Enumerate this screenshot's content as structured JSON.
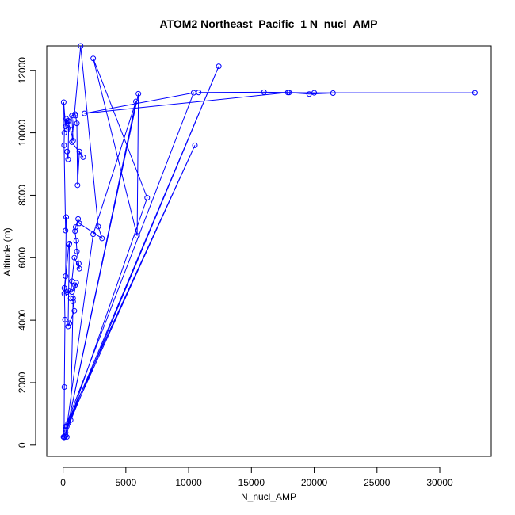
{
  "chart_data": {
    "type": "line",
    "title": "ATOM2 Northeast_Pacific_1 N_nucl_AMP",
    "xlabel": "N_nucl_AMP",
    "ylabel": "Altitude (m)",
    "xlim": [
      -1300,
      34100
    ],
    "ylim": [
      -360,
      12780
    ],
    "xticks": [
      0,
      5000,
      10000,
      15000,
      20000,
      25000,
      30000
    ],
    "yticks": [
      0,
      2000,
      4000,
      6000,
      8000,
      10000,
      12000
    ],
    "grid": false,
    "line_color": "#0000ff",
    "point_color": "#0000ff",
    "series": [
      {
        "points": [
          [
            30,
            260
          ],
          [
            80,
            250
          ],
          [
            150,
            270
          ],
          [
            300,
            260
          ],
          [
            80,
            250
          ],
          [
            100,
            1860
          ],
          [
            150,
            4020
          ],
          [
            100,
            5030
          ],
          [
            200,
            5410
          ],
          [
            250,
            7300
          ],
          [
            200,
            6870
          ],
          [
            80,
            9600
          ],
          [
            100,
            10000
          ],
          [
            50,
            10980
          ],
          [
            200,
            10200
          ],
          [
            250,
            10450
          ],
          [
            300,
            10100
          ],
          [
            320,
            9400
          ],
          [
            400,
            9150
          ],
          [
            450,
            10380
          ],
          [
            350,
            10380
          ],
          [
            600,
            10100
          ],
          [
            800,
            9750
          ],
          [
            700,
            10550
          ],
          [
            950,
            10600
          ],
          [
            1000,
            10550
          ],
          [
            1100,
            10300
          ],
          [
            1150,
            8320
          ],
          [
            1300,
            9400
          ],
          [
            1600,
            9220
          ],
          [
            700,
            9700
          ],
          [
            1400,
            12780
          ],
          [
            2800,
            7000
          ],
          [
            3100,
            6620
          ],
          [
            1300,
            7100
          ],
          [
            1200,
            7240
          ],
          [
            1000,
            6980
          ],
          [
            950,
            6850
          ],
          [
            1050,
            6540
          ],
          [
            1100,
            6200
          ],
          [
            1250,
            5810
          ],
          [
            1300,
            5650
          ],
          [
            900,
            6000
          ],
          [
            700,
            5250
          ],
          [
            600,
            4700
          ],
          [
            800,
            4600
          ],
          [
            900,
            4300
          ],
          [
            500,
            3900
          ],
          [
            400,
            3800
          ],
          [
            500,
            6450
          ],
          [
            450,
            6420
          ],
          [
            100,
            4850
          ],
          [
            300,
            4900
          ],
          [
            400,
            4950
          ],
          [
            700,
            4900
          ],
          [
            950,
            5120
          ],
          [
            1050,
            5200
          ],
          [
            800,
            4700
          ],
          [
            600,
            800
          ],
          [
            400,
            700
          ],
          [
            300,
            600
          ],
          [
            2400,
            6750
          ],
          [
            5800,
            11000
          ],
          [
            200,
            300
          ],
          [
            6000,
            11250
          ],
          [
            5900,
            6700
          ],
          [
            2400,
            12380
          ],
          [
            6700,
            7920
          ],
          [
            200,
            400
          ],
          [
            12400,
            12130
          ],
          [
            200,
            500
          ],
          [
            10500,
            9600
          ],
          [
            200,
            600
          ],
          [
            10400,
            11280
          ],
          [
            1700,
            10620
          ],
          [
            17900,
            11290
          ],
          [
            19600,
            11240
          ],
          [
            21500,
            11270
          ],
          [
            32800,
            11280
          ],
          [
            20000,
            11280
          ],
          [
            18000,
            11290
          ],
          [
            16000,
            11300
          ],
          [
            10800,
            11290
          ]
        ]
      }
    ]
  }
}
